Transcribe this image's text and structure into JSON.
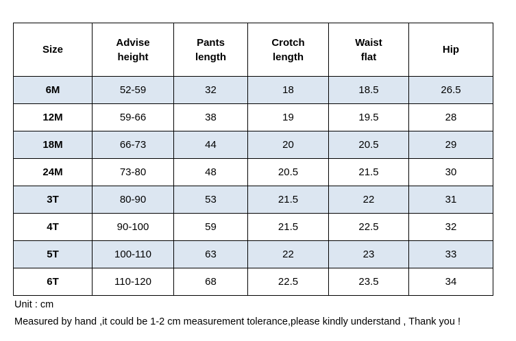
{
  "table": {
    "headers": [
      "Size",
      "Advise\nheight",
      "Pants\nlength",
      "Crotch\nlength",
      "Waist\nflat",
      "Hip"
    ],
    "rows": [
      [
        "6M",
        "52-59",
        "32",
        "18",
        "18.5",
        "26.5"
      ],
      [
        "12M",
        "59-66",
        "38",
        "19",
        "19.5",
        "28"
      ],
      [
        "18M",
        "66-73",
        "44",
        "20",
        "20.5",
        "29"
      ],
      [
        "24M",
        "73-80",
        "48",
        "20.5",
        "21.5",
        "30"
      ],
      [
        "3T",
        "80-90",
        "53",
        "21.5",
        "22",
        "31"
      ],
      [
        "4T",
        "90-100",
        "59",
        "21.5",
        "22.5",
        "32"
      ],
      [
        "5T",
        "100-110",
        "63",
        "22",
        "23",
        "33"
      ],
      [
        "6T",
        "110-120",
        "68",
        "22.5",
        "23.5",
        "34"
      ]
    ],
    "shaded_row_color": "#dce6f1"
  },
  "notes": {
    "unit": "Unit : cm",
    "measure": "Measured by hand ,it could be 1-2 cm measurement tolerance,please kindly understand , Thank you !"
  }
}
